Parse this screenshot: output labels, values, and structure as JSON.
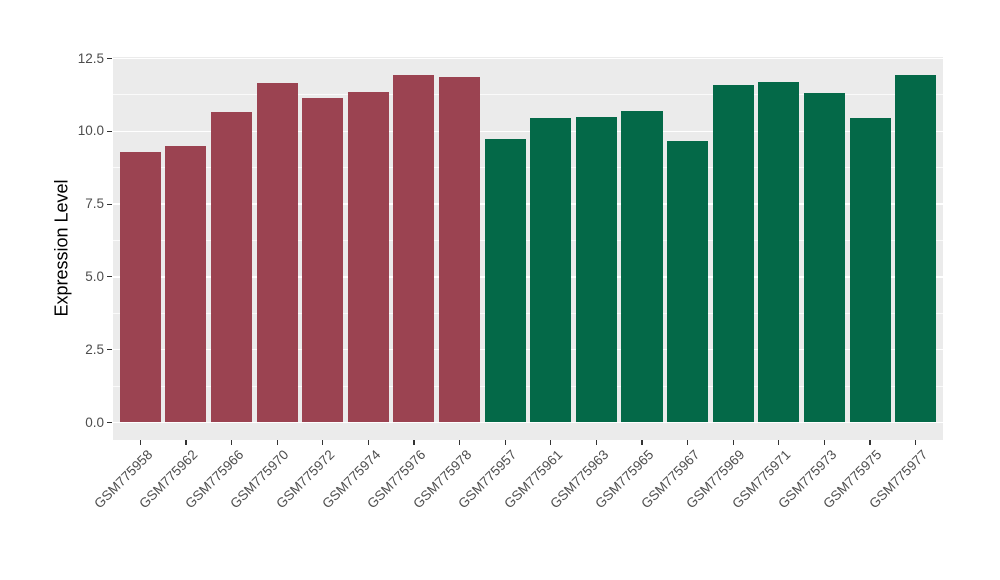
{
  "figure": {
    "background": "#FFFFFF",
    "panel_background": "#EBEBEB",
    "grid_color": "#FFFFFF",
    "tick_mark_color": "#333333",
    "tick_label_color": "#4D4D4D",
    "axis_title_color": "#000000"
  },
  "chart_data": {
    "type": "bar",
    "title": "",
    "xlabel": "",
    "ylabel": "Expression Level",
    "ylim": [
      0,
      12.5
    ],
    "yticks": [
      0,
      2.5,
      5,
      7.5,
      10,
      12.5
    ],
    "ytick_labels": [
      "0.0",
      "2.5",
      "5.0",
      "7.5",
      "10.0",
      "12.5"
    ],
    "grid": "major and minor horizontal gridlines on",
    "legend": "none",
    "x_tick_rotation": 45,
    "categories": [
      "GSM775958",
      "GSM775962",
      "GSM775966",
      "GSM775970",
      "GSM775972",
      "GSM775974",
      "GSM775976",
      "GSM775978",
      "GSM775957",
      "GSM775961",
      "GSM775963",
      "GSM775965",
      "GSM775967",
      "GSM775969",
      "GSM775971",
      "GSM775973",
      "GSM775975",
      "GSM775977"
    ],
    "values": [
      9.3,
      9.5,
      10.65,
      11.65,
      11.15,
      11.35,
      11.95,
      11.85,
      9.75,
      10.45,
      10.5,
      10.7,
      9.65,
      11.6,
      11.7,
      11.3,
      10.45,
      11.95
    ],
    "groups": [
      "A",
      "A",
      "A",
      "A",
      "A",
      "A",
      "A",
      "A",
      "B",
      "B",
      "B",
      "B",
      "B",
      "B",
      "B",
      "B",
      "B",
      "B"
    ],
    "group_colors": {
      "A": "#9B4351",
      "B": "#046948"
    }
  }
}
